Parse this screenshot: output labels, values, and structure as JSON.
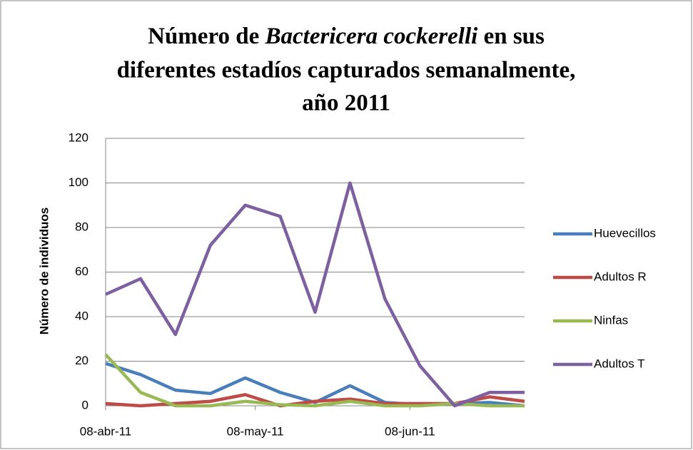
{
  "chart_data": {
    "type": "line",
    "title_parts": [
      "Número de ",
      "Bactericera cockerelli",
      " en sus",
      "diferentes estadíos capturados semanalmente,",
      "año 2011"
    ],
    "y_label": "Número de individuos",
    "x": [
      "2011-04-08",
      "2011-04-15",
      "2011-04-22",
      "2011-04-29",
      "2011-05-06",
      "2011-05-13",
      "2011-05-20",
      "2011-05-27",
      "2011-06-03",
      "2011-06-10",
      "2011-06-17",
      "2011-06-24",
      "2011-07-01"
    ],
    "xlim": [
      "2011-04-08",
      "2011-07-01"
    ],
    "xticks": [
      {
        "value": "2011-04-08",
        "label": "08-abr-11"
      },
      {
        "value": "2011-05-08",
        "label": "08-may-11"
      },
      {
        "value": "2011-06-08",
        "label": "08-jun-11"
      }
    ],
    "ylim": [
      0,
      120
    ],
    "yticks": [
      0,
      20,
      40,
      60,
      80,
      100,
      120
    ],
    "grid": true,
    "legend": "right",
    "series": [
      {
        "name": "Huevecillos",
        "color": "#4a7ebb",
        "values": [
          19,
          14,
          7,
          5.5,
          12.5,
          6,
          1.5,
          9,
          1.5,
          0.5,
          1,
          1.5,
          0
        ]
      },
      {
        "name": "Adultos R",
        "color": "#be4b48",
        "values": [
          1,
          0,
          1,
          2,
          5,
          0,
          2,
          3,
          1,
          1,
          1,
          4,
          2
        ]
      },
      {
        "name": "Ninfas",
        "color": "#98b954",
        "values": [
          23,
          6,
          0,
          0,
          2,
          0.5,
          0,
          2,
          0,
          0,
          1,
          0,
          0
        ]
      },
      {
        "name": "Adultos T",
        "color": "#7d60a0",
        "values": [
          50,
          57,
          32,
          72,
          90,
          85,
          42,
          100,
          48,
          18,
          0,
          6,
          6
        ]
      }
    ]
  }
}
